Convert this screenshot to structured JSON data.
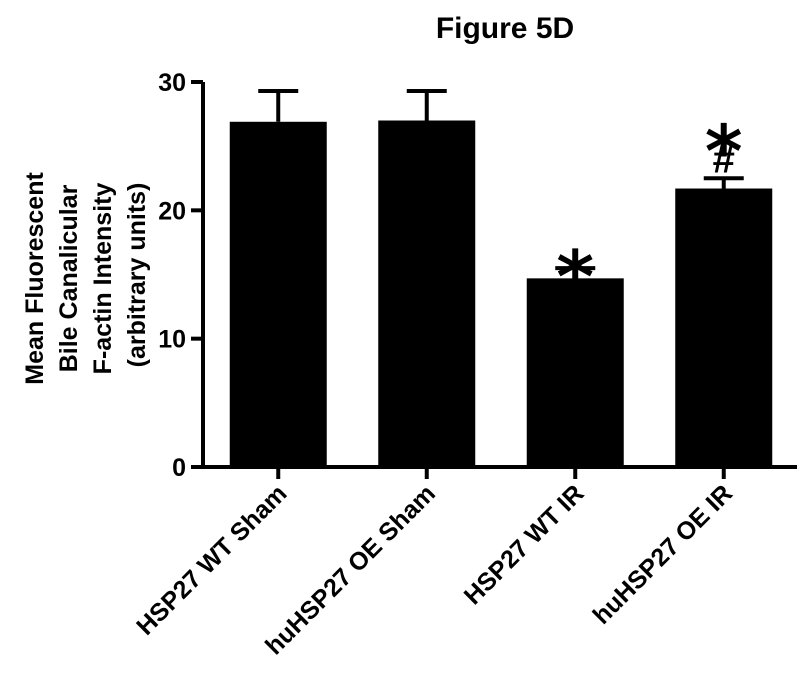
{
  "chart_data": {
    "type": "bar",
    "title": "Figure 5D",
    "ylabel_lines": [
      "Mean Fluorescent",
      "Bile Canalicular",
      "F-actin Intensity",
      "(arbitrary units)"
    ],
    "xlabel": "",
    "categories": [
      "HSP27 WT Sham",
      "huHSP27 OE Sham",
      "HSP27 WT IR",
      "huHSP27 OE IR"
    ],
    "values": [
      26.9,
      27.0,
      14.7,
      21.7
    ],
    "error_upper": [
      2.4,
      2.3,
      0.8,
      0.8
    ],
    "annotations": [
      [],
      [],
      [
        "*"
      ],
      [
        "*",
        "#"
      ]
    ],
    "ylim": [
      0,
      30
    ],
    "yticks": [
      0,
      10,
      20,
      30
    ],
    "yticklabels": [
      "0",
      "10",
      "20",
      "30"
    ],
    "bar_color": "#000000",
    "grid": false,
    "legend": "none"
  }
}
